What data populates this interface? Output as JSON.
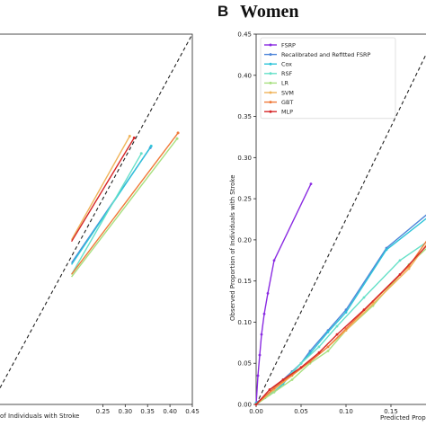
{
  "chart_data": [
    {
      "panel": "",
      "title": "",
      "type": "line",
      "xlabel": "of Individuals with Stroke",
      "ylabel": "",
      "xlim": [
        0.0,
        0.45
      ],
      "ylim": [
        0.0,
        0.45
      ],
      "xticks": [
        "0.25",
        "0.30",
        "0.35",
        "0.40",
        "0.45"
      ],
      "reference_line": true,
      "series": [
        {
          "name": "SVM",
          "color": "#f0b45a",
          "x": [
            0.18,
            0.31
          ],
          "y": [
            0.2,
            0.326
          ]
        },
        {
          "name": "MLP",
          "color": "#d62728",
          "x": [
            0.18,
            0.32
          ],
          "y": [
            0.198,
            0.324
          ]
        },
        {
          "name": "Recalibrated and Refitted FSRP",
          "color": "#4f86d9",
          "x": [
            0.18,
            0.356
          ],
          "y": [
            0.172,
            0.312
          ]
        },
        {
          "name": "Cox",
          "color": "#2ec4d9",
          "x": [
            0.18,
            0.358
          ],
          "y": [
            0.17,
            0.314
          ]
        },
        {
          "name": "RSF",
          "color": "#66e0c8",
          "x": [
            0.18,
            0.336
          ],
          "y": [
            0.158,
            0.305
          ]
        },
        {
          "name": "LR",
          "color": "#a8e080",
          "x": [
            0.18,
            0.416
          ],
          "y": [
            0.155,
            0.323
          ]
        },
        {
          "name": "GBT",
          "color": "#f07a3a",
          "x": [
            0.18,
            0.418
          ],
          "y": [
            0.158,
            0.33
          ]
        }
      ]
    },
    {
      "panel": "B",
      "title": "Women",
      "type": "line",
      "xlabel": "Predicted Propo",
      "ylabel": "Observed Proportion of Individuals with Stroke",
      "xlim": [
        0.0,
        0.2
      ],
      "ylim": [
        0.0,
        0.45
      ],
      "xticks": [
        "0.00",
        "0.05",
        "0.10",
        "0.15"
      ],
      "yticks": [
        "0.00",
        "0.05",
        "0.10",
        "0.15",
        "0.20",
        "0.25",
        "0.30",
        "0.35",
        "0.40",
        "0.45"
      ],
      "reference_line": true,
      "legend": "top-left",
      "series": [
        {
          "name": "FSRP",
          "color": "#8a2be2",
          "x": [
            0.0,
            0.002,
            0.004,
            0.006,
            0.009,
            0.013,
            0.02,
            0.061
          ],
          "y": [
            0.0,
            0.035,
            0.06,
            0.085,
            0.11,
            0.135,
            0.175,
            0.268
          ]
        },
        {
          "name": "Recalibrated and Refitted FSRP",
          "color": "#4f86d9",
          "x": [
            0.0,
            0.01,
            0.02,
            0.03,
            0.04,
            0.05,
            0.06,
            0.08,
            0.1,
            0.145,
            0.2
          ],
          "y": [
            0.002,
            0.01,
            0.02,
            0.03,
            0.04,
            0.05,
            0.065,
            0.09,
            0.115,
            0.19,
            0.24
          ]
        },
        {
          "name": "Cox",
          "color": "#2ec4d9",
          "x": [
            0.0,
            0.01,
            0.02,
            0.03,
            0.04,
            0.05,
            0.06,
            0.08,
            0.1,
            0.145,
            0.2
          ],
          "y": [
            0.002,
            0.008,
            0.015,
            0.025,
            0.038,
            0.05,
            0.062,
            0.088,
            0.112,
            0.188,
            0.235
          ]
        },
        {
          "name": "RSF",
          "color": "#66e0c8",
          "x": [
            0.0,
            0.015,
            0.03,
            0.05,
            0.07,
            0.09,
            0.12,
            0.16,
            0.2
          ],
          "y": [
            0.0,
            0.012,
            0.028,
            0.05,
            0.07,
            0.095,
            0.13,
            0.175,
            0.205
          ]
        },
        {
          "name": "LR",
          "color": "#a8e080",
          "x": [
            0.0,
            0.02,
            0.04,
            0.06,
            0.08,
            0.1,
            0.13,
            0.17,
            0.2
          ],
          "y": [
            0.0,
            0.015,
            0.03,
            0.05,
            0.065,
            0.09,
            0.12,
            0.17,
            0.2
          ]
        },
        {
          "name": "SVM",
          "color": "#f0b45a",
          "x": [
            0.0,
            0.02,
            0.04,
            0.06,
            0.08,
            0.1,
            0.13,
            0.17,
            0.2
          ],
          "y": [
            0.0,
            0.018,
            0.035,
            0.052,
            0.07,
            0.09,
            0.122,
            0.165,
            0.21
          ]
        },
        {
          "name": "GBT",
          "color": "#f07a3a",
          "x": [
            0.0,
            0.02,
            0.04,
            0.06,
            0.08,
            0.1,
            0.13,
            0.17,
            0.2
          ],
          "y": [
            0.0,
            0.02,
            0.036,
            0.052,
            0.07,
            0.092,
            0.125,
            0.168,
            0.215
          ]
        },
        {
          "name": "MLP",
          "color": "#d62728",
          "x": [
            0.0,
            0.015,
            0.03,
            0.05,
            0.07,
            0.09,
            0.12,
            0.16,
            0.2
          ],
          "y": [
            0.0,
            0.018,
            0.03,
            0.045,
            0.063,
            0.085,
            0.115,
            0.158,
            0.205
          ]
        }
      ]
    }
  ]
}
